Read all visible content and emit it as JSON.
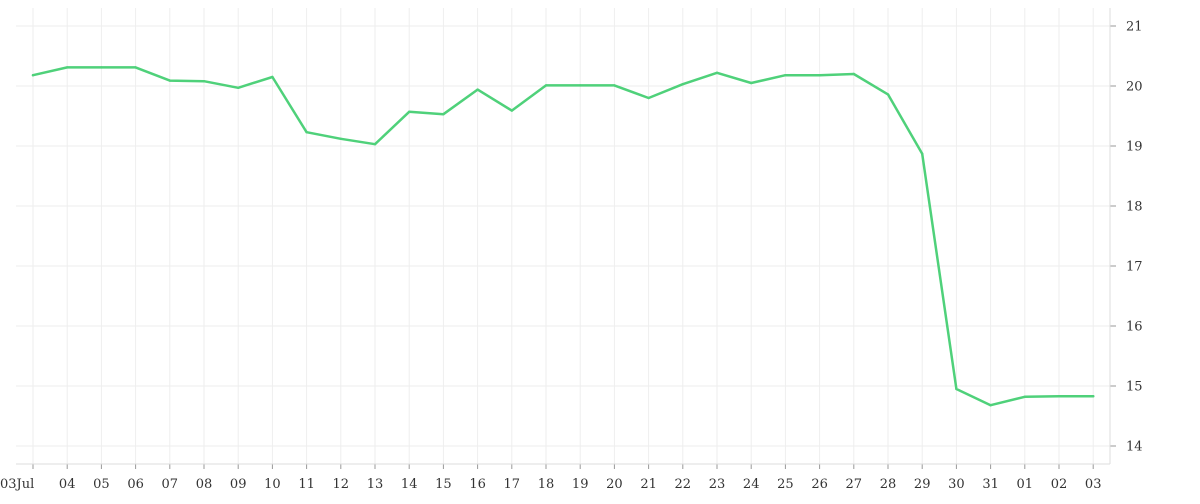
{
  "chart_data": {
    "type": "line",
    "x": [
      "03Jul",
      "04",
      "05",
      "06",
      "07",
      "08",
      "09",
      "10",
      "11",
      "12",
      "13",
      "14",
      "15",
      "16",
      "17",
      "18",
      "19",
      "20",
      "21",
      "22",
      "23",
      "24",
      "25",
      "26",
      "27",
      "28",
      "29",
      "30",
      "31",
      "01",
      "02",
      "03"
    ],
    "series": [
      {
        "values": [
          20.18,
          20.31,
          20.31,
          20.31,
          20.09,
          20.08,
          19.97,
          20.15,
          19.23,
          19.12,
          19.03,
          19.57,
          19.53,
          19.94,
          19.59,
          20.01,
          20.01,
          20.01,
          19.8,
          20.03,
          20.22,
          20.05,
          20.18,
          20.18,
          20.2,
          19.86,
          18.87,
          14.95,
          14.68,
          14.82,
          14.83,
          14.83
        ],
        "color": "#4fd17a"
      }
    ],
    "yticks": [
      14,
      15,
      16,
      17,
      18,
      19,
      20,
      21
    ],
    "ylim": [
      13.7,
      21.3
    ],
    "y_axis_position": "right",
    "grid": true,
    "title": "",
    "xlabel": "",
    "ylabel": "",
    "grid_color": "#eeeeee",
    "tick_color": "#999999"
  }
}
